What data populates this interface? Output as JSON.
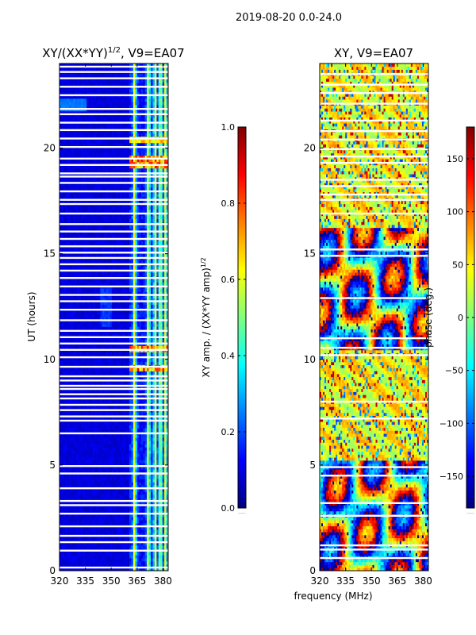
{
  "figure": {
    "suptitle": "2019-08-20 0.0-24.0",
    "shared_xlabel": "frequency (MHz)"
  },
  "colors": {
    "jet": [
      "#00007f",
      "#0000ff",
      "#007fff",
      "#00ffff",
      "#7fff7f",
      "#ffff00",
      "#ff7f00",
      "#ff0000",
      "#7f0000"
    ],
    "background": "#ffffff",
    "gap": "#ffffff"
  },
  "chart_data": [
    {
      "type": "heatmap",
      "title_prefix": "XY/(XX*YY)",
      "title_exponent": "1/2",
      "title_suffix": ", V9=EA07",
      "xlabel": "",
      "ylabel": "UT (hours)",
      "xlim": [
        320,
        383
      ],
      "ylim": [
        0,
        24
      ],
      "xticks": [
        320,
        335,
        350,
        365,
        380
      ],
      "yticks": [
        0,
        5,
        10,
        15,
        20
      ],
      "colorbar": {
        "label_prefix": "XY amp. / (XX*YY amp)",
        "label_exponent": "1/2",
        "range": [
          0.0,
          1.0
        ],
        "ticks": [
          0.0,
          0.2,
          0.4,
          0.6,
          0.8,
          1.0
        ],
        "tick_labels": [
          "0.0",
          "0.2",
          "0.4",
          "0.6",
          "0.8",
          "1.0"
        ]
      },
      "description_of_values": "mostly low amplitude (~0.05-0.2) below 361 MHz; bright vertical stripes (~0.4-0.7) between 361 and 383 MHz; red/yellow spots near 19.3 h and 9.5-10.5 h",
      "gap_hours": [
        0.15,
        0.95,
        1.35,
        1.65,
        2.1,
        2.7,
        3.1,
        3.3,
        3.9,
        4.6,
        4.95,
        6.5,
        7.1,
        7.3,
        7.6,
        7.85,
        8.15,
        8.35,
        8.6,
        8.75,
        9.0,
        9.2,
        9.65,
        10.1,
        10.45,
        10.75,
        11.05,
        11.35,
        11.85,
        12.35,
        12.75,
        13.05,
        13.45,
        13.85,
        14.2,
        14.5,
        14.8,
        15.05,
        15.35,
        15.7,
        16.05,
        16.4,
        16.9,
        17.35,
        17.55,
        17.95,
        18.35,
        18.65,
        18.8,
        19.2,
        19.5,
        20.05,
        20.45,
        20.85,
        21.2,
        21.6,
        21.85,
        22.5,
        22.9,
        23.3,
        23.6,
        23.85
      ]
    },
    {
      "type": "heatmap",
      "title": "XY, V9=EA07",
      "xlabel": "",
      "ylabel": "",
      "xlim": [
        320,
        383
      ],
      "ylim": [
        0,
        24
      ],
      "xticks": [
        320,
        335,
        350,
        365,
        380
      ],
      "yticks": [
        0,
        5,
        10,
        15,
        20
      ],
      "colorbar": {
        "label": "phase (deg.)",
        "range": [
          -180,
          180
        ],
        "ticks": [
          -150,
          -100,
          -50,
          0,
          50,
          100,
          150
        ],
        "tick_labels": [
          "−150",
          "−100",
          "−50",
          "0",
          "50",
          "100",
          "150"
        ]
      },
      "description_of_values": "noisy phase pattern covering full -180..180 range; yellow/green dominated background with blue and red banded regions, strong red/blue wrap features between 0-5 h and 10-16 h",
      "gap_hours": [
        0.6,
        1.0,
        1.2,
        2.6,
        3.2,
        4.5,
        4.9,
        7.2,
        8.0,
        10.2,
        10.55,
        11.0,
        12.9,
        14.9,
        15.2,
        16.9,
        17.55,
        17.8,
        18.2,
        18.5,
        19.3,
        19.6,
        19.95,
        20.4,
        20.8,
        21.3,
        22.1,
        22.6,
        23.0,
        23.5
      ]
    }
  ]
}
